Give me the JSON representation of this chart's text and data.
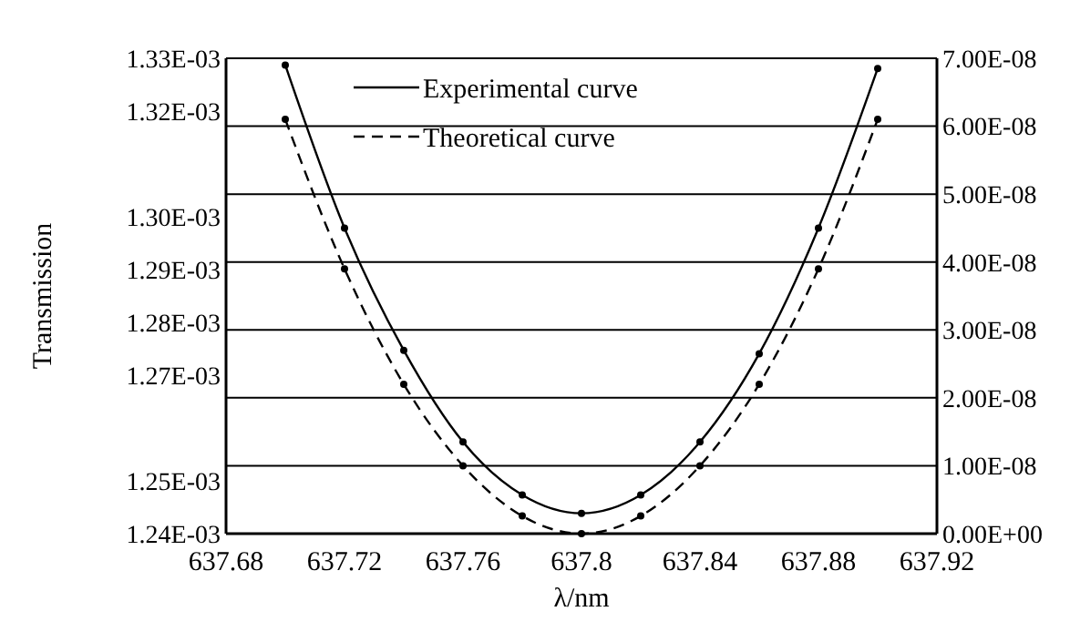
{
  "chart_data": {
    "type": "line",
    "xlabel": "λ/nm",
    "ylabel": "Transmission",
    "x": [
      637.7,
      637.72,
      637.74,
      637.76,
      637.78,
      637.8,
      637.82,
      637.84,
      637.86,
      637.88,
      637.9
    ],
    "series": [
      {
        "name": "Experimental curve",
        "color": "#000000",
        "line_style": "solid",
        "axis": "y2",
        "values": [
          6.9e-08,
          4.5e-08,
          2.7e-08,
          1.35e-08,
          5.7e-09,
          3e-09,
          5.7e-09,
          1.35e-08,
          2.65e-08,
          4.5e-08,
          6.85e-08
        ]
      },
      {
        "name": "Theoretical curve",
        "color": "#000000",
        "line_style": "dashed",
        "axis": "y2",
        "values": [
          6.1e-08,
          3.9e-08,
          2.2e-08,
          1e-08,
          2.6e-09,
          0,
          2.6e-09,
          1e-08,
          2.2e-08,
          3.9e-08,
          6.1e-08
        ]
      }
    ],
    "xlim": [
      637.68,
      637.92
    ],
    "xticks": [
      637.68,
      637.72,
      637.76,
      637.8,
      637.84,
      637.88,
      637.92
    ],
    "ylim": [
      0.00124,
      0.00133
    ],
    "yticks": [
      {
        "value": 0.00124,
        "label": "1.24E-03"
      },
      {
        "value": 0.00125,
        "label": "1.25E-03"
      },
      {
        "value": 0.00127,
        "label": "1.27E-03"
      },
      {
        "value": 0.00128,
        "label": "1.28E-03"
      },
      {
        "value": 0.00129,
        "label": "1.29E-03"
      },
      {
        "value": 0.0013,
        "label": "1.30E-03"
      },
      {
        "value": 0.00132,
        "label": "1.32E-03"
      },
      {
        "value": 0.00133,
        "label": "1.33E-03"
      }
    ],
    "y2lim": [
      0,
      7e-08
    ],
    "y2ticks": [
      {
        "value": 0,
        "label": "0.00E+00"
      },
      {
        "value": 1e-08,
        "label": "1.00E-08"
      },
      {
        "value": 2e-08,
        "label": "2.00E-08"
      },
      {
        "value": 3e-08,
        "label": "3.00E-08"
      },
      {
        "value": 4e-08,
        "label": "4.00E-08"
      },
      {
        "value": 5e-08,
        "label": "5.00E-08"
      },
      {
        "value": 6e-08,
        "label": "6.00E-08"
      },
      {
        "value": 7e-08,
        "label": "7.00E-08"
      }
    ],
    "grid": "y2",
    "legend": "top left",
    "marker": "circle"
  }
}
